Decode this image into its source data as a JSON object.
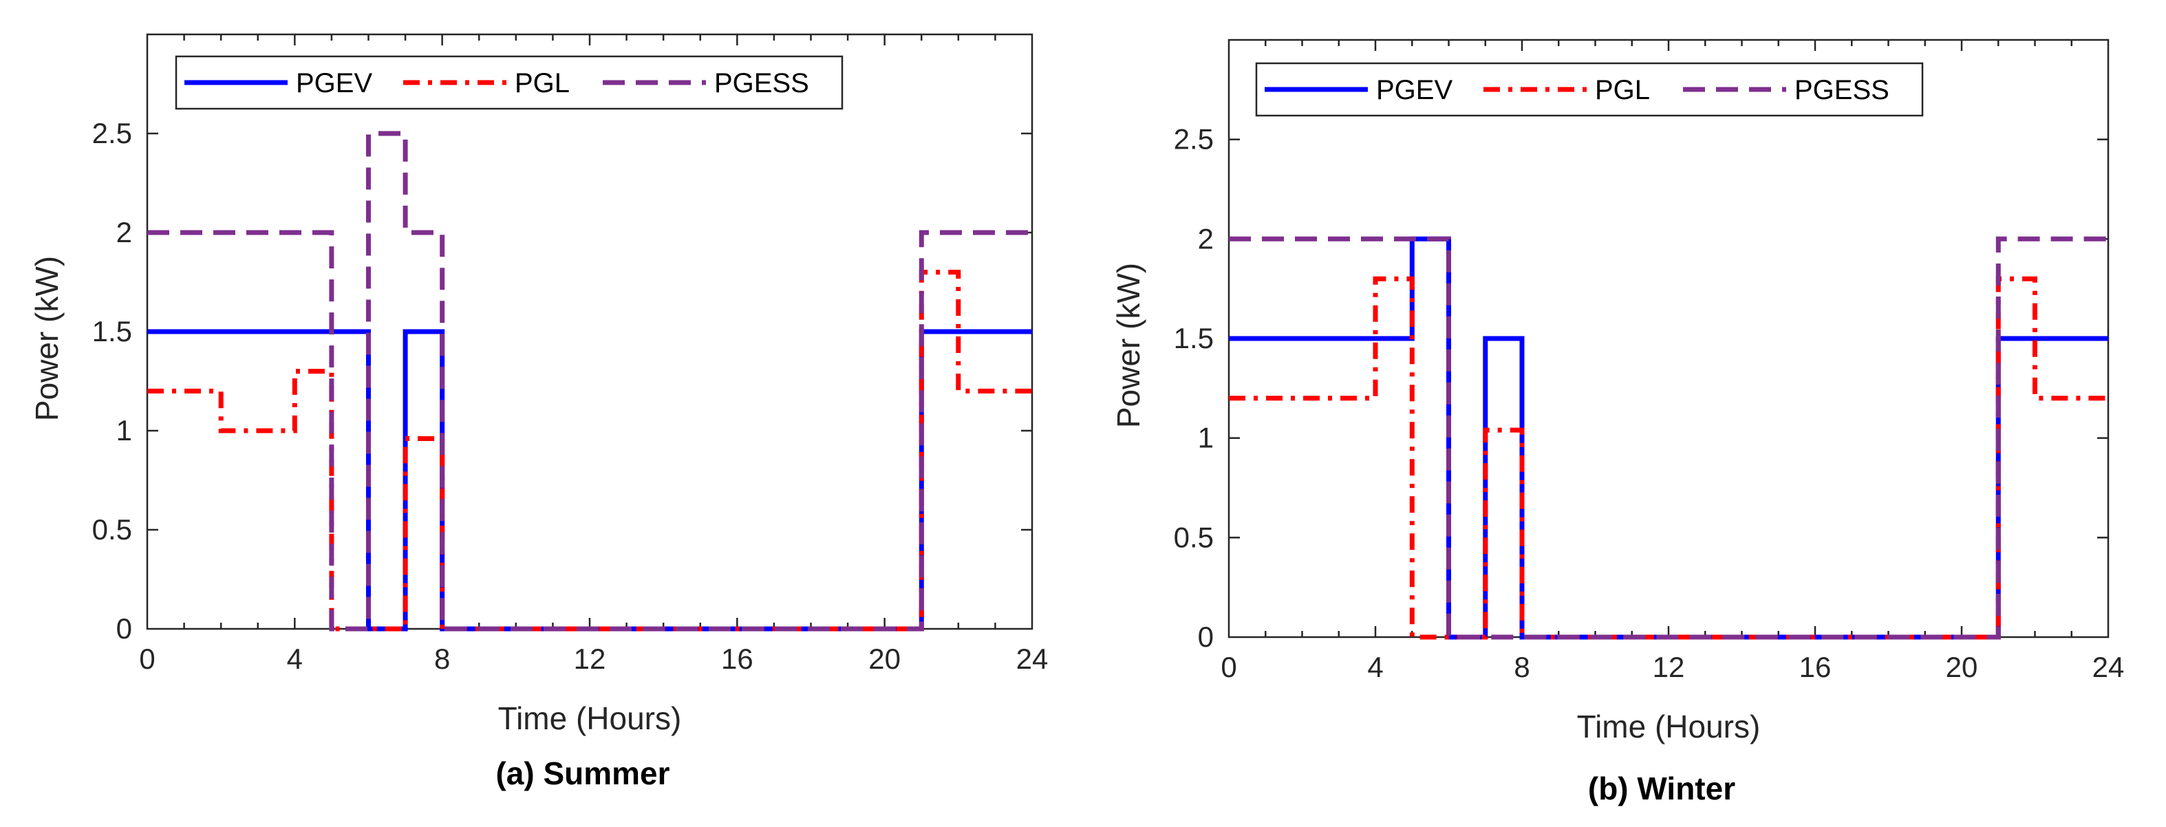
{
  "chart_data": [
    {
      "type": "line",
      "caption": "(a) Summer",
      "xlabel": "Time (Hours)",
      "ylabel": "Power (kW)",
      "xlim": [
        0,
        24
      ],
      "ylim": [
        0,
        3
      ],
      "xticks": [
        0,
        4,
        8,
        12,
        16,
        20,
        24
      ],
      "xtick_labels": [
        "0",
        "4",
        "8",
        "12",
        "16",
        "20",
        "24"
      ],
      "yticks": [
        0,
        0.5,
        1,
        1.5,
        2,
        2.5
      ],
      "ytick_labels": [
        "0",
        "0.5",
        "1",
        "1.5",
        "2",
        "2.5"
      ],
      "legend_position": "top",
      "series": [
        {
          "name": "PGEV",
          "color": "#0000ff",
          "style": "solid",
          "x": [
            0,
            6,
            6,
            7,
            7,
            8,
            8,
            21,
            21,
            24
          ],
          "y": [
            1.5,
            1.5,
            0,
            0,
            1.5,
            1.5,
            0,
            0,
            1.5,
            1.5
          ]
        },
        {
          "name": "PGL",
          "color": "#ff0000",
          "style": "dashdot",
          "x": [
            0,
            2,
            2,
            4,
            4,
            5,
            5,
            7,
            7,
            8,
            8,
            21,
            21,
            22,
            22,
            24
          ],
          "y": [
            1.2,
            1.2,
            1.0,
            1.0,
            1.3,
            1.3,
            0,
            0,
            0.96,
            0.96,
            0,
            0,
            1.8,
            1.8,
            1.2,
            1.2
          ]
        },
        {
          "name": "PGESS",
          "color": "#7e2f8e",
          "style": "dashed",
          "x": [
            0,
            5,
            5,
            6,
            6,
            7,
            7,
            8,
            8,
            21,
            21,
            24
          ],
          "y": [
            2.0,
            2.0,
            0,
            0,
            2.5,
            2.5,
            2.0,
            2.0,
            0,
            0,
            2.0,
            2.0
          ]
        }
      ]
    },
    {
      "type": "line",
      "caption": "(b) Winter",
      "xlabel": "Time (Hours)",
      "ylabel": "Power (kW)",
      "xlim": [
        0,
        24
      ],
      "ylim": [
        0,
        3
      ],
      "xticks": [
        0,
        4,
        8,
        12,
        16,
        20,
        24
      ],
      "xtick_labels": [
        "0",
        "4",
        "8",
        "12",
        "16",
        "20",
        "24"
      ],
      "yticks": [
        0,
        0.5,
        1,
        1.5,
        2,
        2.5
      ],
      "ytick_labels": [
        "0",
        "0.5",
        "1",
        "1.5",
        "2",
        "2.5"
      ],
      "legend_position": "top",
      "series": [
        {
          "name": "PGEV",
          "color": "#0000ff",
          "style": "solid",
          "x": [
            0,
            5,
            5,
            6,
            6,
            7,
            7,
            8,
            8,
            21,
            21,
            24
          ],
          "y": [
            1.5,
            1.5,
            2.0,
            2.0,
            0,
            0,
            1.5,
            1.5,
            0,
            0,
            1.5,
            1.5
          ]
        },
        {
          "name": "PGL",
          "color": "#ff0000",
          "style": "dashdot",
          "x": [
            0,
            4,
            4,
            5,
            5,
            7,
            7,
            8,
            8,
            21,
            21,
            22,
            22,
            24
          ],
          "y": [
            1.2,
            1.2,
            1.8,
            1.8,
            0,
            0,
            1.04,
            1.04,
            0,
            0,
            1.8,
            1.8,
            1.2,
            1.2
          ]
        },
        {
          "name": "PGESS",
          "color": "#7e2f8e",
          "style": "dashed",
          "x": [
            0,
            6,
            6,
            8,
            8,
            21,
            21,
            24
          ],
          "y": [
            2.0,
            2.0,
            0,
            0,
            0,
            0,
            2.0,
            2.0
          ]
        }
      ]
    }
  ]
}
